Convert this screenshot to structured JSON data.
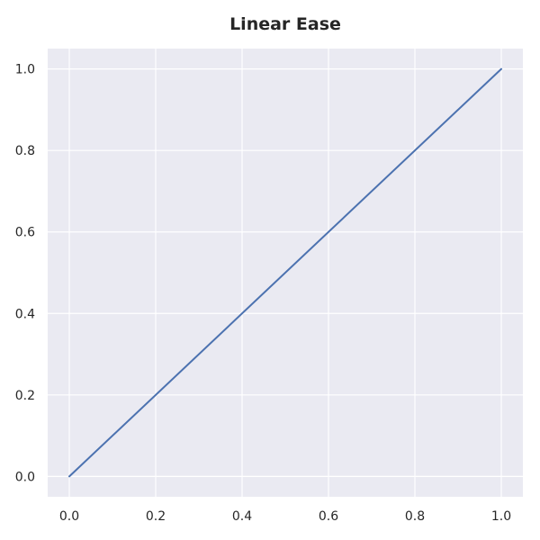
{
  "chart_data": {
    "type": "line",
    "title": "Linear Ease",
    "xlabel": "",
    "ylabel": "",
    "xlim": [
      -0.05,
      1.05
    ],
    "ylim": [
      -0.05,
      1.05
    ],
    "xticks": [
      "0.0",
      "0.2",
      "0.4",
      "0.6",
      "0.8",
      "1.0"
    ],
    "yticks": [
      "0.0",
      "0.2",
      "0.4",
      "0.6",
      "0.8",
      "1.0"
    ],
    "grid": true,
    "background_color": "#eaeaf2",
    "grid_color": "#ffffff",
    "series": [
      {
        "color": "#4c72b0",
        "x": [
          0.0,
          1.0
        ],
        "y": [
          0.0,
          1.0
        ]
      }
    ]
  }
}
